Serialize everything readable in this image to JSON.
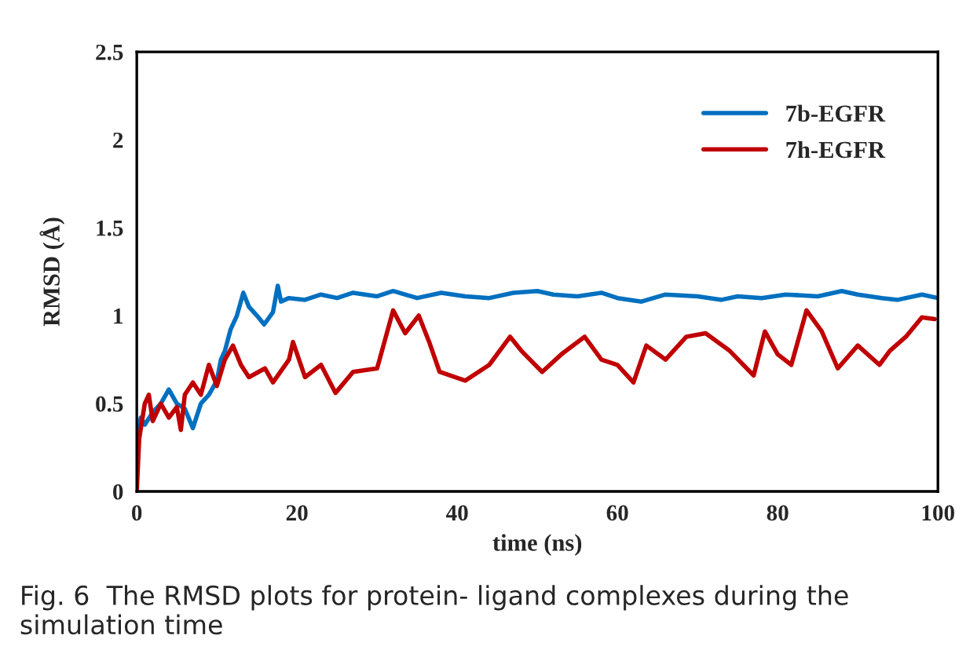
{
  "chart_data": {
    "type": "line",
    "xlabel": "time (ns)",
    "ylabel": "RMSD (Å)",
    "xlim": [
      0,
      100
    ],
    "ylim": [
      0,
      2.5
    ],
    "xticks": [
      0,
      20,
      40,
      60,
      80,
      100
    ],
    "yticks": [
      0,
      0.5,
      1,
      1.5,
      2,
      2.5
    ],
    "grid": false,
    "legend": "top right",
    "line_style": "solid",
    "marker": "none",
    "annotations": [
      "Fig. 6  The RMSD plots for protein- ligand complexes during the simulation time"
    ],
    "series": [
      {
        "name": "7b-EGFR",
        "color": "#0070c0",
        "x": [
          0,
          0.5,
          1,
          2,
          3,
          4,
          5,
          6,
          7,
          8,
          9,
          10,
          10.5,
          11,
          11.7,
          12.5,
          13.3,
          14,
          15,
          15.9,
          17,
          17.6,
          18,
          19,
          21,
          23,
          25,
          27,
          30,
          32,
          35,
          38,
          41,
          44,
          47,
          50,
          52,
          55,
          58,
          60,
          63,
          66,
          70,
          73,
          75,
          78,
          81,
          85,
          88,
          90,
          93,
          95,
          98,
          100
        ],
        "values": [
          0.3,
          0.42,
          0.38,
          0.45,
          0.5,
          0.58,
          0.5,
          0.47,
          0.36,
          0.5,
          0.55,
          0.63,
          0.75,
          0.8,
          0.92,
          1.0,
          1.13,
          1.05,
          1.0,
          0.95,
          1.02,
          1.17,
          1.08,
          1.1,
          1.09,
          1.12,
          1.1,
          1.13,
          1.11,
          1.14,
          1.1,
          1.13,
          1.11,
          1.1,
          1.13,
          1.14,
          1.12,
          1.11,
          1.13,
          1.1,
          1.08,
          1.12,
          1.11,
          1.09,
          1.11,
          1.1,
          1.12,
          1.11,
          1.14,
          1.12,
          1.1,
          1.09,
          1.12,
          1.1
        ]
      },
      {
        "name": "7h-EGFR",
        "color": "#c00000",
        "x": [
          0,
          0.3,
          1,
          1.5,
          2,
          3,
          4,
          5,
          5.5,
          6,
          7,
          8,
          9,
          10,
          11,
          12,
          13,
          14,
          16,
          17,
          19,
          19.5,
          21,
          23,
          24.8,
          27,
          30,
          32,
          33.5,
          35.2,
          36.5,
          37.8,
          41,
          44,
          46.6,
          48,
          50.6,
          53,
          55.9,
          58,
          60,
          62,
          63.6,
          66,
          68.6,
          71,
          74,
          77,
          78.4,
          80,
          81.7,
          83.6,
          85.5,
          87.5,
          90,
          92.7,
          94,
          96,
          98,
          99.6
        ],
        "values": [
          0.0,
          0.3,
          0.5,
          0.55,
          0.4,
          0.5,
          0.42,
          0.48,
          0.35,
          0.55,
          0.62,
          0.55,
          0.72,
          0.6,
          0.75,
          0.83,
          0.72,
          0.65,
          0.7,
          0.62,
          0.75,
          0.85,
          0.65,
          0.72,
          0.56,
          0.68,
          0.7,
          1.03,
          0.9,
          1.0,
          0.85,
          0.68,
          0.63,
          0.72,
          0.88,
          0.8,
          0.68,
          0.78,
          0.88,
          0.75,
          0.72,
          0.62,
          0.83,
          0.75,
          0.88,
          0.9,
          0.8,
          0.66,
          0.91,
          0.78,
          0.72,
          1.03,
          0.91,
          0.7,
          0.83,
          0.72,
          0.8,
          0.88,
          0.99,
          0.98
        ]
      }
    ]
  }
}
